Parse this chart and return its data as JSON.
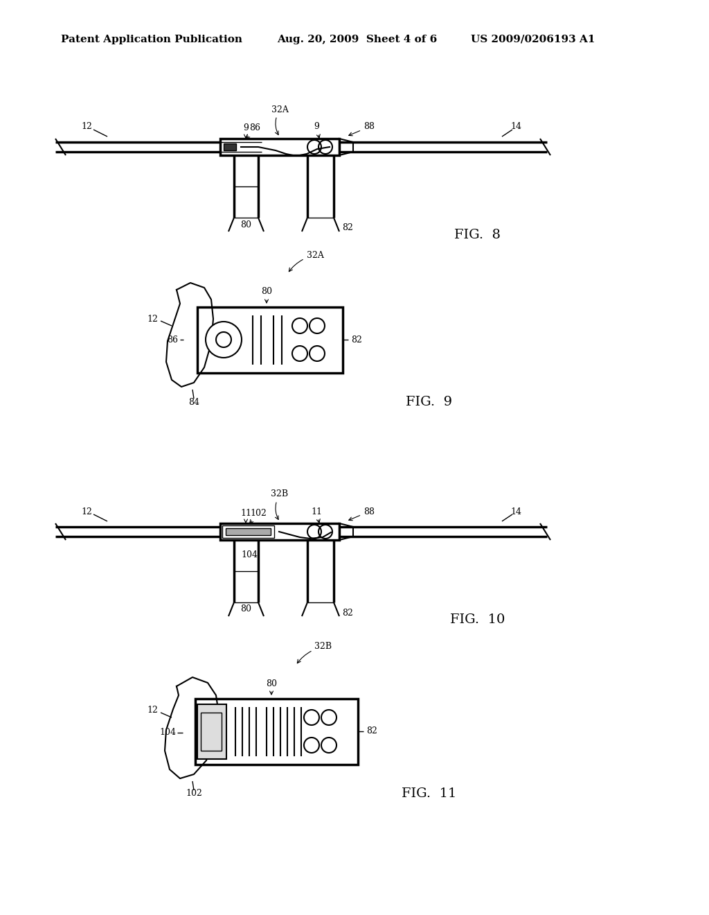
{
  "background_color": "#ffffff",
  "header_left": "Patent Application Publication",
  "header_mid": "Aug. 20, 2009  Sheet 4 of 6",
  "header_right": "US 2009/0206193 A1",
  "header_fontsize": 11,
  "fig8_label": "FIG.  8",
  "fig9_label": "FIG.  9",
  "fig10_label": "FIG.  10",
  "fig11_label": "FIG.  11",
  "label_fontsize": 14
}
